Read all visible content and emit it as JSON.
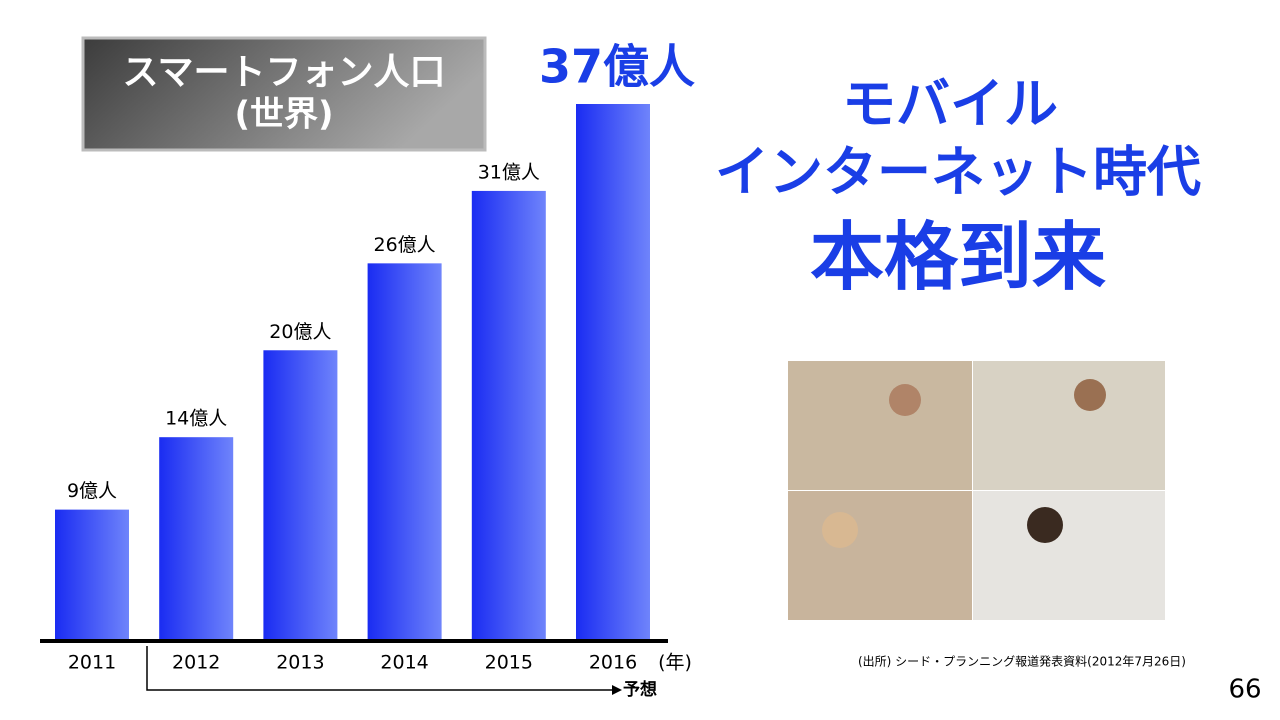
{
  "chart_data": {
    "type": "bar",
    "title_lines": [
      "スマートフォン人口",
      "(世界)"
    ],
    "categories": [
      "2011",
      "2012",
      "2013",
      "2014",
      "2015",
      "2016"
    ],
    "values": [
      9,
      14,
      20,
      26,
      31,
      37
    ],
    "value_labels": [
      "9億人",
      "14億人",
      "20億人",
      "26億人",
      "31億人",
      "37億人"
    ],
    "x_unit": "(年)",
    "annotation": "予想"
  },
  "headline": [
    "モバイル",
    "インターネット時代",
    "本格到来"
  ],
  "source": "(出所) シード・プランニング報道発表資料(2012年7月26日)",
  "page_number": "66"
}
